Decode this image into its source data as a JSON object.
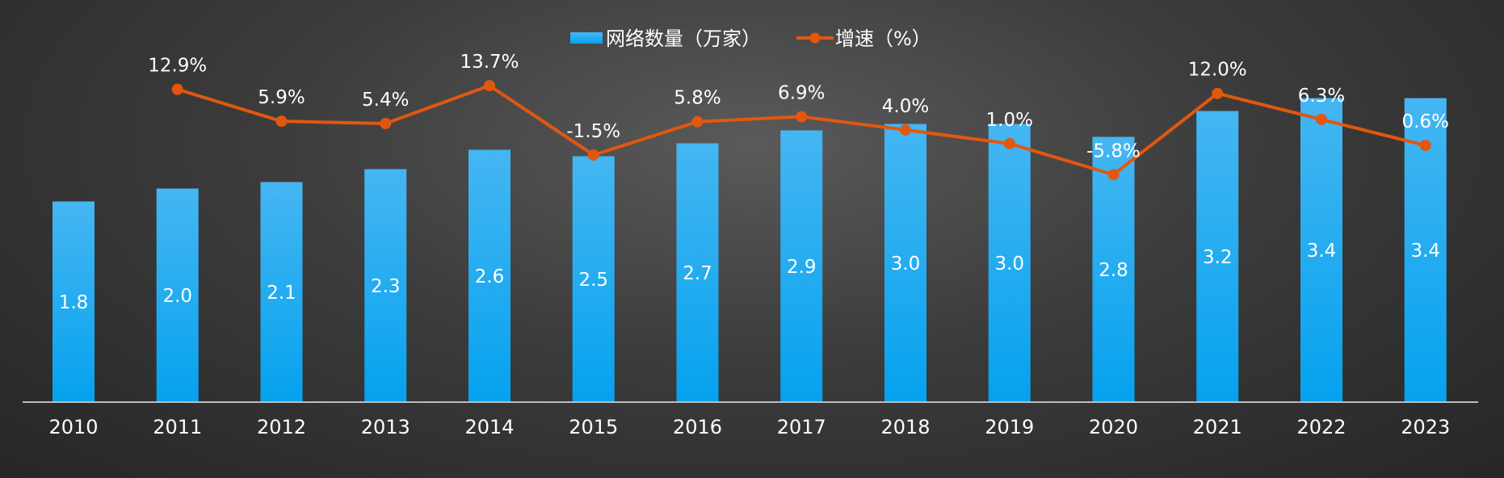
{
  "chart_data": {
    "type": "bar",
    "categories": [
      "2010",
      "2011",
      "2012",
      "2013",
      "2014",
      "2015",
      "2016",
      "2017",
      "2018",
      "2019",
      "2020",
      "2021",
      "2022",
      "2023"
    ],
    "series": [
      {
        "name": "网络数量（万家）",
        "type": "bar",
        "color": "#1ea7f0",
        "values": [
          1.8,
          2.0,
          2.1,
          2.3,
          2.6,
          2.5,
          2.7,
          2.9,
          3.0,
          3.0,
          2.8,
          3.2,
          3.4,
          3.4
        ],
        "labels": [
          "1.8",
          "2.0",
          "2.1",
          "2.3",
          "2.6",
          "2.5",
          "2.7",
          "2.9",
          "3.0",
          "3.0",
          "2.8",
          "3.2",
          "3.4",
          "3.4"
        ]
      },
      {
        "name": "增速（%）",
        "type": "line",
        "color": "#e2570f",
        "values": [
          null,
          12.9,
          5.9,
          5.4,
          13.7,
          -1.5,
          5.8,
          6.9,
          4.0,
          1.0,
          -5.8,
          12.0,
          6.3,
          0.6
        ],
        "labels": [
          "",
          "12.9%",
          "5.9%",
          "5.4%",
          "13.7%",
          "-1.5%",
          "5.8%",
          "6.9%",
          "4.0%",
          "1.0%",
          "-5.8%",
          "12.0%",
          "6.3%",
          "0.6%"
        ]
      }
    ],
    "legend_position": "top-center",
    "grid": false
  }
}
